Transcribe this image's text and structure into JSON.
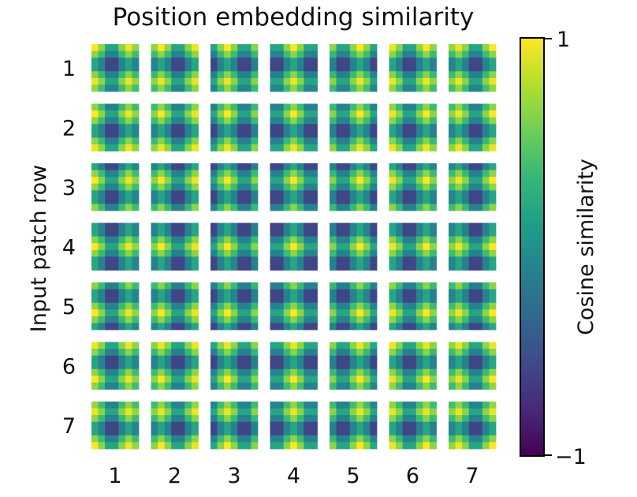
{
  "chart_data": {
    "type": "heatmap",
    "title": "Position embedding similarity",
    "ylabel": "Input patch row",
    "xlabel": "",
    "x_ticks": [
      "1",
      "2",
      "3",
      "4",
      "5",
      "6",
      "7"
    ],
    "y_ticks": [
      "1",
      "2",
      "3",
      "4",
      "5",
      "6",
      "7"
    ],
    "grid": {
      "rows": 7,
      "cols": 7,
      "cell_rows": 7,
      "cell_cols": 7
    },
    "colorbar": {
      "label": "Cosine similarity",
      "range": [
        -1,
        1
      ],
      "ticks": [
        "1",
        "−1"
      ],
      "colormap": "viridis"
    },
    "colormap_stops": [
      "#440154",
      "#482878",
      "#3e4a89",
      "#31688e",
      "#26828e",
      "#1f9e89",
      "#35b779",
      "#6ece58",
      "#b5de2b",
      "#fde725"
    ],
    "description_of_cells": "Each small square shows cosine similarity between the position embedding of the patch at (row, column) and all 7x7 patch embeddings; values near 1 along the patch's own row and column, lower elsewhere."
  }
}
